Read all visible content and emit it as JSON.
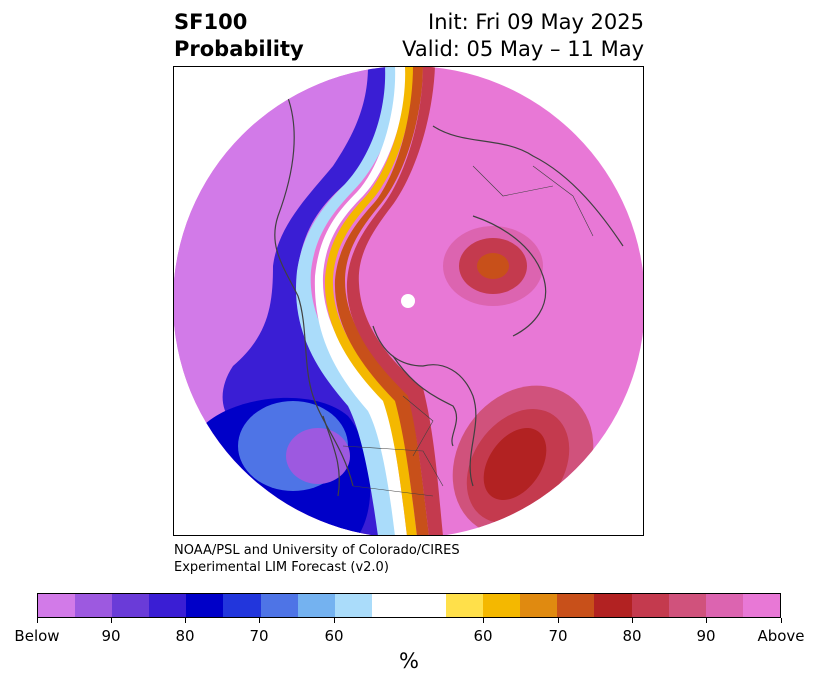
{
  "title": {
    "left_line1": "SF100",
    "left_line2": "Probability",
    "right_line1": "Init: Fri 09 May 2025",
    "right_line2": "Valid: 05 May – 11 May"
  },
  "credit": {
    "line1": "NOAA/PSL and University of Colorado/CIRES",
    "line2": "Experimental LIM Forecast (v2.0)"
  },
  "colorbar": {
    "colors": [
      "#d27ae8",
      "#9d59e0",
      "#6a3bd8",
      "#3a1ed4",
      "#0000c8",
      "#2236dc",
      "#4e74e6",
      "#74b2f0",
      "#aadcfa",
      "#ffffff",
      "#ffffff",
      "#ffe04a",
      "#f4b800",
      "#e08a10",
      "#c8501a",
      "#b22222",
      "#c43a4e",
      "#d0527c",
      "#dc64b0",
      "#e878d6"
    ],
    "tick_labels": [
      "Below",
      "90",
      "80",
      "70",
      "60",
      "60",
      "70",
      "80",
      "90",
      "Above"
    ],
    "unit": "%"
  },
  "map_colors": {
    "above_high": "#e878d6",
    "below_high": "#d27ae8",
    "ocean_blue": "#0000c8",
    "coast": "#404040"
  }
}
